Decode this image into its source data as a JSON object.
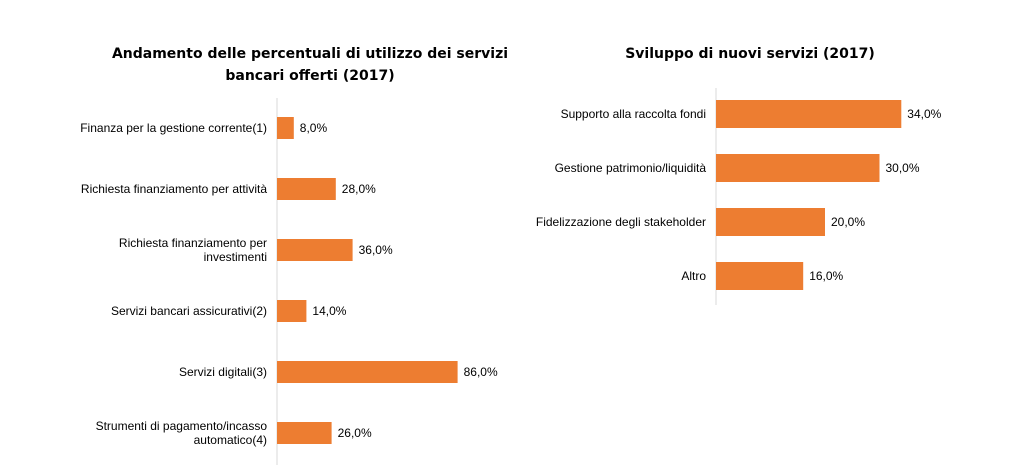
{
  "chart_data": [
    {
      "type": "bar",
      "orientation": "horizontal",
      "title_lines": [
        "Andamento delle percentuali di utilizzo dei servizi",
        "bancari offerti (2017)"
      ],
      "categories": [
        [
          "Finanza per la gestione corrente(1)"
        ],
        [
          "Richiesta finanziamento per attività"
        ],
        [
          "Richiesta finanziamento per",
          "investimenti"
        ],
        [
          "Servizi bancari assicurativi(2)"
        ],
        [
          "Servizi digitali(3)"
        ],
        [
          "Strumenti di pagamento/incasso",
          "automatico(4)"
        ]
      ],
      "values": [
        8.0,
        28.0,
        36.0,
        14.0,
        86.0,
        26.0
      ],
      "value_labels": [
        "8,0%",
        "28,0%",
        "36,0%",
        "14,0%",
        "86,0%",
        "26,0%"
      ],
      "xlim": [
        0,
        100
      ],
      "grid": false,
      "bar_color": "#ed7d31"
    },
    {
      "type": "bar",
      "orientation": "horizontal",
      "title_lines": [
        "Sviluppo di nuovi servizi (2017)"
      ],
      "categories": [
        [
          "Supporto alla raccolta fondi"
        ],
        [
          "Gestione patrimonio/liquidità"
        ],
        [
          "Fidelizzazione degli stakeholder"
        ],
        [
          "Altro"
        ]
      ],
      "values": [
        34.0,
        30.0,
        20.0,
        16.0
      ],
      "value_labels": [
        "34,0%",
        "30,0%",
        "20,0%",
        "16,0%"
      ],
      "xlim": [
        0,
        40
      ],
      "grid": false,
      "bar_color": "#ed7d31"
    }
  ]
}
